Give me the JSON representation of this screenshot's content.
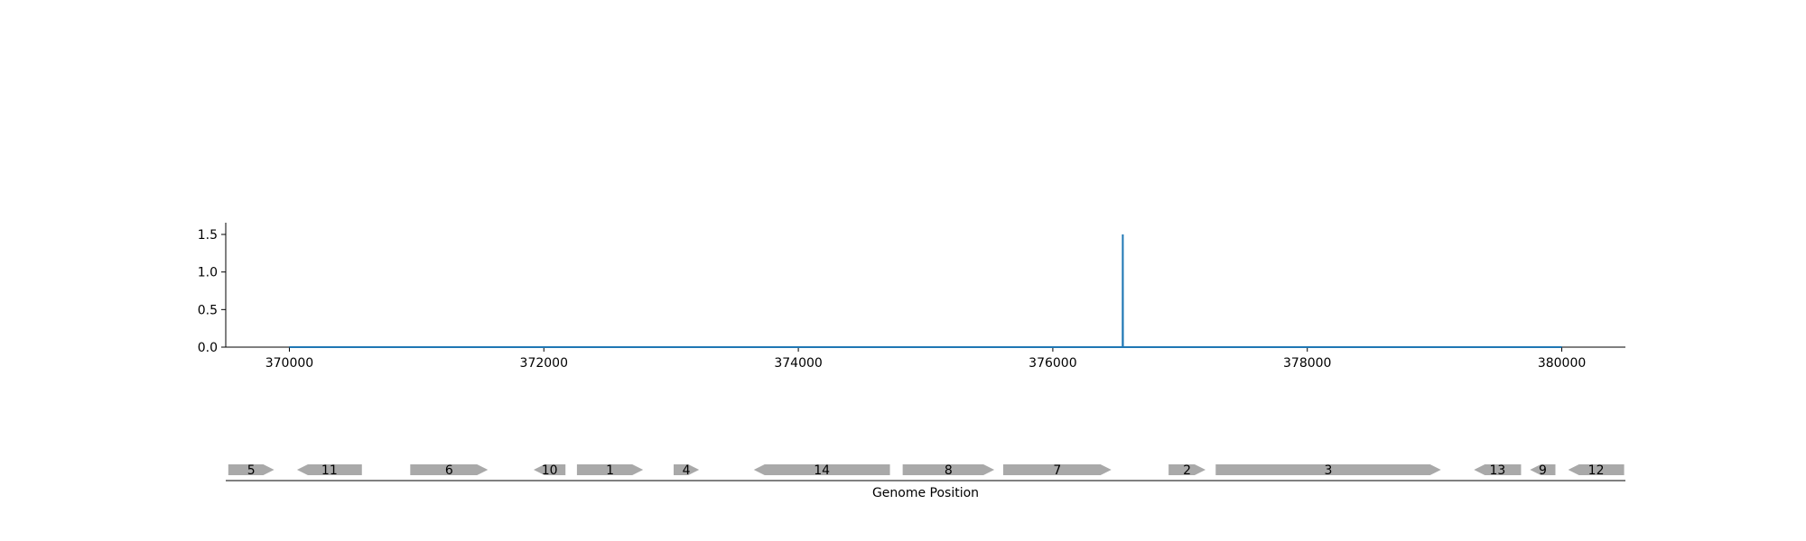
{
  "chart_data": [
    {
      "type": "line",
      "title": "",
      "xlabel": "",
      "ylabel": "",
      "xlim": [
        369500,
        380500
      ],
      "ylim": [
        0,
        1.65
      ],
      "x_ticks": [
        370000,
        372000,
        374000,
        376000,
        378000,
        380000
      ],
      "x_tick_labels": [
        "370000",
        "372000",
        "374000",
        "376000",
        "378000",
        "380000"
      ],
      "y_ticks": [
        0.0,
        0.5,
        1.0,
        1.5
      ],
      "y_tick_labels": [
        "0.0",
        "0.5",
        "1.0",
        "1.5"
      ],
      "grid": false,
      "line_color": "#1f77b4",
      "series": [
        {
          "x": [
            370000,
            376549,
            376550,
            376551,
            380000
          ],
          "y": [
            0,
            0,
            1.5,
            0,
            0
          ]
        }
      ]
    },
    {
      "type": "gene-track",
      "xlabel": "Genome Position",
      "xlim": [
        369500,
        380500
      ],
      "gene_color": "#a9a9a9",
      "genes": [
        {
          "label": "5",
          "start": 369520,
          "end": 369880,
          "strand": "+"
        },
        {
          "label": "11",
          "start": 370060,
          "end": 370570,
          "strand": "-"
        },
        {
          "label": "6",
          "start": 370950,
          "end": 371560,
          "strand": "+"
        },
        {
          "label": "10",
          "start": 371920,
          "end": 372170,
          "strand": "-"
        },
        {
          "label": "1",
          "start": 372260,
          "end": 372780,
          "strand": "+"
        },
        {
          "label": "4",
          "start": 373020,
          "end": 373220,
          "strand": "+"
        },
        {
          "label": "14",
          "start": 373650,
          "end": 374720,
          "strand": "-"
        },
        {
          "label": "8",
          "start": 374820,
          "end": 375540,
          "strand": "+"
        },
        {
          "label": "7",
          "start": 375610,
          "end": 376460,
          "strand": "+"
        },
        {
          "label": "2",
          "start": 376910,
          "end": 377200,
          "strand": "+"
        },
        {
          "label": "3",
          "start": 377280,
          "end": 379050,
          "strand": "+"
        },
        {
          "label": "13",
          "start": 379310,
          "end": 379680,
          "strand": "-"
        },
        {
          "label": "9",
          "start": 379750,
          "end": 379950,
          "strand": "-"
        },
        {
          "label": "12",
          "start": 380050,
          "end": 380490,
          "strand": "-"
        }
      ]
    }
  ]
}
